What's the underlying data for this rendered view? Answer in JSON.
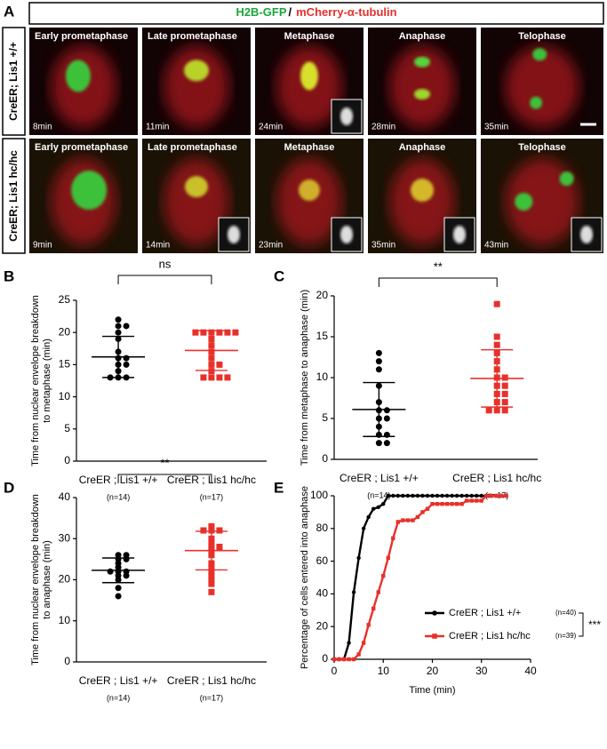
{
  "panel_labels": [
    "A",
    "B",
    "C",
    "D",
    "E"
  ],
  "panel_a": {
    "header": {
      "green": "H2B-GFP",
      "separator": "/",
      "red": "mCherry-α-tubulin"
    },
    "rows": [
      {
        "label": "CreER; Lis1 +/+",
        "frames": [
          {
            "phase": "Early prometaphase",
            "time": "8min"
          },
          {
            "phase": "Late prometaphase",
            "time": "11min"
          },
          {
            "phase": "Metaphase",
            "time": "24min"
          },
          {
            "phase": "Anaphase",
            "time": "28min"
          },
          {
            "phase": "Telophase",
            "time": "35min"
          }
        ]
      },
      {
        "label": "CreER; Lis1 hc/hc",
        "frames": [
          {
            "phase": "Early prometaphase",
            "time": "9min"
          },
          {
            "phase": "Late prometaphase",
            "time": "14min"
          },
          {
            "phase": "Metaphase",
            "time": "23min"
          },
          {
            "phase": "Anaphase",
            "time": "35min"
          },
          {
            "phase": "Telophase",
            "time": "43min"
          }
        ]
      }
    ]
  },
  "chart_data": [
    {
      "type": "dotplot",
      "ylabel": [
        "Time from nuclear envelope breakdown",
        "to metaphase (min)"
      ],
      "categories": [
        "CreER ; Lis1 +/+",
        "CreER ; Lis1 hc/hc"
      ],
      "category_notes": [
        "(n=14)",
        "(n=17)"
      ],
      "significance": "ns",
      "ylim": [
        0,
        25
      ],
      "yticks": [
        0,
        5,
        10,
        15,
        20,
        25
      ],
      "groups": [
        {
          "color": "#000000",
          "marker": "circle",
          "values": [
            22,
            21,
            21,
            20,
            19,
            17,
            16,
            16,
            15,
            15,
            14,
            13,
            13,
            13
          ],
          "mean": 16.2,
          "sd": 3.2
        },
        {
          "color": "#e8302a",
          "marker": "square",
          "values": [
            20,
            20,
            20,
            20,
            20,
            20,
            19,
            18,
            17,
            16,
            15,
            15,
            14,
            13,
            13,
            13,
            13
          ],
          "mean": 17.2,
          "sd": 3.1
        }
      ]
    },
    {
      "type": "dotplot",
      "ylabel": [
        "Time from metaphase to anaphase (min)"
      ],
      "categories": [
        "CreER ; Lis1 +/+",
        "CreER ; Lis1 hc/hc"
      ],
      "category_notes": [
        "(n=14)",
        "(n=17)"
      ],
      "significance": "**",
      "ylim": [
        0,
        20
      ],
      "yticks": [
        0,
        5,
        10,
        15,
        20
      ],
      "groups": [
        {
          "color": "#000000",
          "marker": "circle",
          "values": [
            13,
            12,
            11,
            9,
            7,
            6,
            6,
            5,
            5,
            4,
            3,
            3,
            2,
            2
          ],
          "mean": 6.1,
          "sd": 3.3
        },
        {
          "color": "#e8302a",
          "marker": "square",
          "values": [
            19,
            15,
            14,
            13,
            12,
            11,
            10,
            10,
            9,
            9,
            8,
            8,
            7,
            7,
            6,
            6,
            6
          ],
          "mean": 9.9,
          "sd": 3.5
        }
      ]
    },
    {
      "type": "dotplot",
      "ylabel": [
        "Time from nuclear envelope breakdown",
        "to anaphase (min)"
      ],
      "categories": [
        "CreER ; Lis1 +/+",
        "CreER ; Lis1 hc/hc"
      ],
      "category_notes": [
        "(n=14)",
        "(n=17)"
      ],
      "significance": "**",
      "ylim": [
        0,
        40
      ],
      "yticks": [
        0,
        10,
        20,
        30,
        40
      ],
      "groups": [
        {
          "color": "#000000",
          "marker": "circle",
          "values": [
            26,
            26,
            25,
            25,
            24,
            23,
            22,
            22,
            22,
            21,
            21,
            20,
            18,
            16
          ],
          "mean": 22.3,
          "sd": 3.0
        },
        {
          "color": "#e8302a",
          "marker": "square",
          "values": [
            33,
            32,
            32,
            32,
            30,
            29,
            28,
            28,
            27,
            26,
            24,
            23,
            22,
            21,
            20,
            19,
            17
          ],
          "mean": 27.1,
          "sd": 4.7
        }
      ]
    },
    {
      "type": "line",
      "ylabel": [
        "Percentage of cells entered into anaphase"
      ],
      "xlabel": "Time (min)",
      "significance": "***",
      "x": [
        0,
        1,
        2,
        3,
        4,
        5,
        6,
        7,
        8,
        9,
        10,
        11,
        12,
        13,
        14,
        15,
        16,
        17,
        18,
        19,
        20,
        21,
        22,
        23,
        24,
        25,
        26,
        27,
        28,
        29,
        30,
        31,
        32,
        33,
        34,
        35
      ],
      "xlim": [
        0,
        40
      ],
      "xticks": [
        0,
        10,
        20,
        30,
        40
      ],
      "ylim": [
        0,
        100
      ],
      "yticks": [
        0,
        20,
        40,
        60,
        80,
        100
      ],
      "series": [
        {
          "name": "CreER ; Lis1 +/+",
          "n_label": "(n=40)",
          "color": "#000000",
          "marker": "circle",
          "values": [
            0,
            0,
            0,
            10,
            41,
            62,
            80,
            87,
            92,
            93,
            95,
            100,
            100,
            100,
            100,
            100,
            100,
            100,
            100,
            100,
            100,
            100,
            100,
            100,
            100,
            100,
            100,
            100,
            100,
            100,
            100,
            100,
            100,
            100,
            100,
            100
          ]
        },
        {
          "name": "CreER ; Lis1 hc/hc",
          "n_label": "(n=39)",
          "color": "#e8302a",
          "marker": "square",
          "values": [
            0,
            0,
            0,
            0,
            0,
            3,
            10,
            21,
            31,
            41,
            51,
            62,
            74,
            84,
            85,
            85,
            85,
            87,
            90,
            92,
            95,
            95,
            95,
            95,
            95,
            95,
            95,
            97,
            97,
            97,
            97,
            100,
            100,
            100,
            100,
            100
          ]
        }
      ]
    }
  ]
}
